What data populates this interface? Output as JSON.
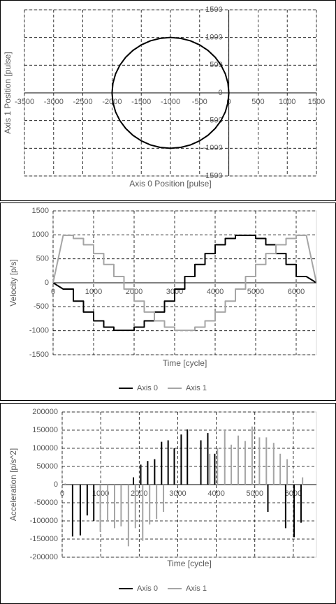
{
  "chart_data": [
    {
      "type": "line",
      "xlabel": "Axis 0 Position [pulse]",
      "ylabel": "Axis 1 Position [pulse]",
      "x": [
        0,
        -15,
        -60,
        -134,
        -234,
        -357,
        -500,
        -658,
        -826,
        -1000,
        -1174,
        -1342,
        -1500,
        -1643,
        -1766,
        -1866,
        -1940,
        -1985,
        -2000,
        -1985,
        -1940,
        -1866,
        -1766,
        -1643,
        -1500,
        -1342,
        -1174,
        -1000,
        -826,
        -658,
        -500,
        -357,
        -234,
        -134,
        -60,
        -15,
        0
      ],
      "series": [
        {
          "color": "#000000",
          "values": [
            0,
            174,
            342,
            500,
            643,
            766,
            866,
            940,
            985,
            1000,
            985,
            940,
            866,
            766,
            643,
            500,
            342,
            174,
            0,
            -174,
            -342,
            -500,
            -643,
            -766,
            -866,
            -940,
            -985,
            -1000,
            -985,
            -940,
            -866,
            -766,
            -643,
            -500,
            -342,
            -174,
            0
          ]
        }
      ],
      "xlim": [
        -3500,
        1500
      ],
      "xticks": [
        -3500,
        -3000,
        -2500,
        -2000,
        -1500,
        -1000,
        -500,
        0,
        500,
        1000,
        1500
      ],
      "ylim": [
        -1500,
        1500
      ],
      "yticks": [
        -1500,
        -1000,
        -500,
        0,
        500,
        1000,
        1500
      ],
      "grid": true,
      "axes_cross_at_zero": true
    },
    {
      "type": "line",
      "xlabel": "Time [cycle]",
      "ylabel": "Velocity [p/s]",
      "x": [
        0,
        250,
        500,
        500,
        750,
        750,
        1000,
        1000,
        1250,
        1250,
        1500,
        1500,
        1750,
        1750,
        2000,
        2000,
        2250,
        2250,
        2500,
        2500,
        2750,
        2750,
        3000,
        3000,
        3250,
        3250,
        3500,
        3500,
        3750,
        3750,
        4000,
        4000,
        4250,
        4250,
        4500,
        4500,
        4750,
        4750,
        5000,
        5000,
        5250,
        5250,
        5500,
        5500,
        5750,
        5750,
        6000,
        6000,
        6250,
        6500
      ],
      "series": [
        {
          "name": "Axis 0",
          "color": "#000000",
          "values": [
            0,
            -131,
            -131,
            -383,
            -383,
            -609,
            -609,
            -793,
            -793,
            -924,
            -924,
            -991,
            -991,
            -991,
            -991,
            -924,
            -924,
            -793,
            -793,
            -609,
            -609,
            -383,
            -383,
            -131,
            -131,
            131,
            131,
            383,
            383,
            609,
            609,
            793,
            793,
            924,
            924,
            991,
            991,
            991,
            991,
            924,
            924,
            793,
            793,
            609,
            609,
            383,
            383,
            131,
            131,
            0
          ]
        },
        {
          "name": "Axis 1",
          "color": "#a5a5a5",
          "values": [
            0,
            991,
            991,
            924,
            924,
            793,
            793,
            609,
            609,
            383,
            383,
            131,
            131,
            -131,
            -131,
            -383,
            -383,
            -609,
            -609,
            -793,
            -793,
            -924,
            -924,
            -991,
            -991,
            -991,
            -991,
            -924,
            -924,
            -793,
            -793,
            -609,
            -609,
            -383,
            -383,
            -131,
            -131,
            131,
            131,
            383,
            383,
            609,
            609,
            793,
            793,
            924,
            924,
            991,
            991,
            0
          ]
        }
      ],
      "xlim": [
        0,
        6500
      ],
      "xticks": [
        0,
        1000,
        2000,
        3000,
        4000,
        5000,
        6000
      ],
      "ylim": [
        -1500,
        1500
      ],
      "yticks": [
        -1500,
        -1000,
        -500,
        0,
        500,
        1000,
        1500
      ],
      "grid": true,
      "legend": "bottom"
    },
    {
      "type": "stem",
      "xlabel": "Time [cycle]",
      "ylabel": "Acceleration [p/s^2]",
      "series": [
        {
          "name": "Axis 0",
          "color": "#000000",
          "x": [
            270,
            470,
            650,
            820,
            1850,
            2040,
            2220,
            2400,
            2580,
            2750,
            2910,
            3090,
            3250,
            3600,
            3780,
            3960,
            5340,
            5800,
            6020,
            6200
          ],
          "values": [
            -143000,
            -140000,
            -85000,
            -100000,
            20000,
            55000,
            65000,
            70000,
            118000,
            122000,
            100000,
            138000,
            152000,
            122000,
            142000,
            85000,
            -75000,
            -120000,
            -145000,
            -105000
          ]
        },
        {
          "name": "Axis 1",
          "color": "#a5a5a5",
          "x": [
            80,
            990,
            1180,
            1360,
            1530,
            1720,
            1900,
            2090,
            2270,
            2450,
            2630,
            3830,
            4030,
            4220,
            4390,
            4570,
            4750,
            4930,
            5120,
            5300,
            5490,
            5660,
            5840,
            6240
          ],
          "values": [
            3000,
            -130000,
            -100000,
            -120000,
            -115000,
            -170000,
            -120000,
            -155000,
            -110000,
            -95000,
            -75000,
            85000,
            100000,
            150000,
            110000,
            135000,
            120000,
            160000,
            130000,
            130000,
            115000,
            85000,
            70000,
            20000
          ]
        }
      ],
      "xlim": [
        0,
        6600
      ],
      "xticks": [
        0,
        1000,
        2000,
        3000,
        4000,
        5000,
        6000
      ],
      "ylim": [
        -200000,
        200000
      ],
      "yticks": [
        -200000,
        -150000,
        -100000,
        -50000,
        0,
        50000,
        100000,
        150000,
        200000
      ],
      "grid": true,
      "legend": "bottom"
    }
  ]
}
